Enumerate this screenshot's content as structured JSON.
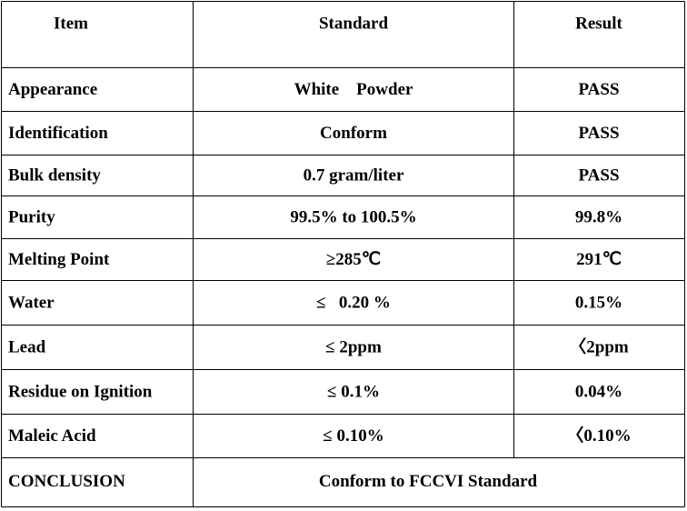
{
  "table": {
    "header": [
      "Item",
      "Standard",
      "Result"
    ],
    "rows": [
      [
        "Appearance",
        "White    Powder",
        "PASS"
      ],
      [
        "Identification",
        "Conform",
        "PASS"
      ],
      [
        "Bulk density",
        "0.7 gram/liter",
        "PASS"
      ],
      [
        "Purity",
        "99.5% to 100.5%",
        "99.8%"
      ],
      [
        "Melting Point",
        "≥285℃",
        "291℃"
      ],
      [
        "Water",
        "≤   0.20 %",
        "0.15%"
      ],
      [
        "Lead",
        "≤ 2ppm",
        "〈2ppm"
      ],
      [
        "Residue on Ignition",
        "≤ 0.1%",
        "0.04%"
      ],
      [
        "Maleic Acid",
        "≤ 0.10%",
        "〈0.10%"
      ]
    ],
    "conclusion": [
      "CONCLUSION",
      "Conform to FCCVI Standard"
    ]
  }
}
